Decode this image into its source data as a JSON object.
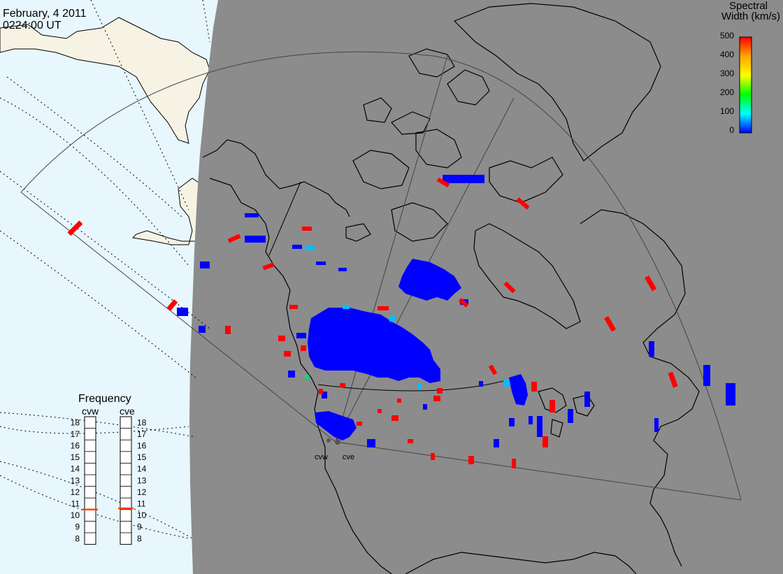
{
  "header": {
    "date": "February, 4 2011",
    "time": "0224:00 UT"
  },
  "colorbar": {
    "title_line1": "Spectral",
    "title_line2": "Width (km/s)",
    "ticks": [
      "500",
      "400",
      "300",
      "200",
      "100",
      "0"
    ],
    "stops": [
      "#ff0000",
      "#ffa500",
      "#ffff00",
      "#00ff00",
      "#00ffff",
      "#0000ff"
    ]
  },
  "frequency": {
    "title": "Frequency",
    "left_label": "cvw",
    "right_label": "cve",
    "scale": [
      "18",
      "17",
      "16",
      "15",
      "14",
      "13",
      "12",
      "11",
      "10",
      "9",
      "8"
    ],
    "cvw_value_mhz": 10.5,
    "cve_value_mhz": 10.6
  },
  "radars": {
    "west": "cvw",
    "east": "cve"
  },
  "colors": {
    "night": "#8c8c8c",
    "ocean_day": "#e8f6fd",
    "land_day": "#f6f3e4",
    "low_width": "#0000ff",
    "high_width": "#ff0000",
    "mid_width": "#00bfff",
    "freq_marker": "#ff4500"
  }
}
